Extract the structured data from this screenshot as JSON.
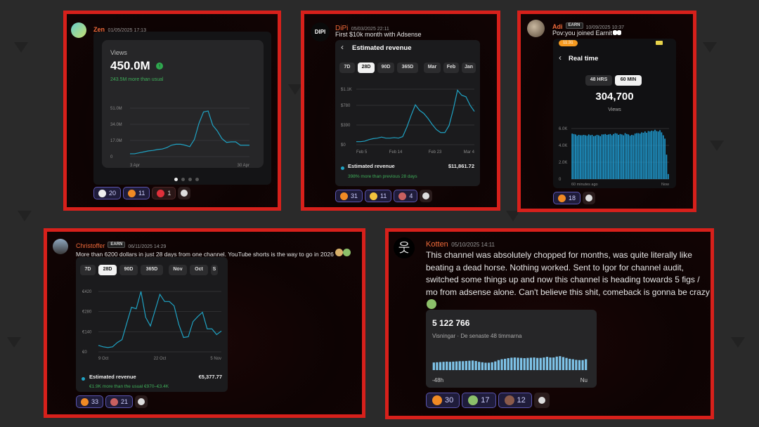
{
  "colors": {
    "frame": "#d7201b",
    "line": "#1fa3c4",
    "bar": "#1f9bd1",
    "kotten_bar": "#7ec3e8",
    "green": "#3fae5a",
    "name": "#f06a3a"
  },
  "zen": {
    "author": "Zen",
    "timestamp": "01/05/2025 17:13",
    "metric": "Views",
    "total": "450.0M",
    "trend_icon": "arrow-up-circle-icon",
    "delta": "243.5M more than usual",
    "reactions": [
      {
        "icon": "llama-icon",
        "count": "20"
      },
      {
        "icon": "fire-icon",
        "count": "11"
      },
      {
        "icon": "hundred-icon",
        "count": "1"
      }
    ],
    "carousel": {
      "pages": 4,
      "active": 1
    }
  },
  "dipi": {
    "author": "DiPi",
    "avatar_text": "DIPI",
    "timestamp": "05/03/2025 22:11",
    "message": "First $10k month with Adsense",
    "title": "Estimated revenue",
    "tabs": [
      "7D",
      "28D",
      "90D",
      "365D",
      "Mar",
      "Feb",
      "Jan"
    ],
    "selected_tab": "28D",
    "legend": "Estimated revenue",
    "total": "$11,861.72",
    "delta": "398% more than previous 28 days",
    "reactions": [
      {
        "icon": "fire-icon",
        "count": "31"
      },
      {
        "icon": "relieved-face-icon",
        "count": "11"
      },
      {
        "icon": "rocket-icon",
        "count": "4"
      }
    ]
  },
  "adi": {
    "author": "Adi",
    "badge": "EARN",
    "timestamp": "10/09/2025 10:37",
    "message": "Pov:you joined Earnit",
    "message_icon": "eyes-icon",
    "clock": "11:31",
    "title": "Real time",
    "toggles": [
      "48 HRS",
      "60 MIN"
    ],
    "selected_toggle": "60 MIN",
    "total": "304,700",
    "total_label": "Views",
    "reactions": [
      {
        "icon": "fire-icon",
        "count": "18"
      }
    ]
  },
  "christoffer": {
    "author": "Christoffer",
    "badge": "EARN",
    "timestamp": "06/11/2025 14:29",
    "message": "More than 6200 dollars in just 28 days from one channel. YouTube shorts is the way to go in 2026",
    "message_icons": [
      "money-bag-icon",
      "money-wings-icon"
    ],
    "tabs": [
      "7D",
      "28D",
      "90D",
      "365D",
      "Nov",
      "Oct",
      "S"
    ],
    "selected_tab": "28D",
    "legend": "Estimated revenue",
    "total": "€5,377.77",
    "delta": "€1.9K more than the usual €970–€3.4K",
    "reactions": [
      {
        "icon": "fire-icon",
        "count": "33"
      },
      {
        "icon": "rocket-icon",
        "count": "21"
      }
    ]
  },
  "kotten": {
    "author": "Kotten",
    "timestamp": "05/10/2025 14:11",
    "message_lines": [
      "This channel was absolutely chopped for months, was quite literally like",
      "beating a dead horse. Nothing worked. Sent to Igor for channel audit,",
      "switched some things up and now this channel is heading towards 5 figs /",
      "mo from adsense alone. Can't believe this shit, comeback is gonna be crazy"
    ],
    "message_icon": "money-wings-icon",
    "total": "5 122 766",
    "subtitle": "Visningar · De senaste 48 timmarna",
    "reactions": [
      {
        "icon": "fire-icon",
        "count": "30"
      },
      {
        "icon": "money-wings-icon",
        "count": "17"
      },
      {
        "icon": "face-avatar-icon",
        "count": "12"
      }
    ]
  },
  "chart_data": [
    {
      "type": "line",
      "ylabel": "",
      "yticks": [
        "51.0M",
        "34.0M",
        "17.0M",
        "0"
      ],
      "ytick_values": [
        51,
        34,
        17,
        0
      ],
      "ylim": [
        0,
        51
      ],
      "xticks": [
        "3 Apr",
        "30 Apr"
      ],
      "unit": "M",
      "grid": true,
      "values": [
        3,
        3,
        4,
        5,
        6,
        6.5,
        7.5,
        8,
        9.5,
        12,
        13,
        13,
        12,
        10.5,
        18,
        35,
        47,
        48,
        33,
        27,
        19,
        15,
        15.5,
        15.5,
        12,
        12,
        12
      ]
    },
    {
      "type": "line",
      "yticks": [
        "$1.1K",
        "$780",
        "$390",
        "$0"
      ],
      "ytick_values": [
        1100,
        780,
        390,
        0
      ],
      "ylim": [
        0,
        1100
      ],
      "xticks": [
        "Feb 5",
        "Feb 14",
        "Feb 23",
        "Mar 4"
      ],
      "grid": true,
      "values": [
        60,
        60,
        70,
        100,
        120,
        130,
        150,
        130,
        130,
        140,
        130,
        160,
        350,
        580,
        790,
        680,
        620,
        520,
        400,
        300,
        240,
        240,
        380,
        700,
        1080,
        980,
        950,
        780,
        660
      ]
    },
    {
      "type": "bar",
      "yticks": [
        "6.0K",
        "4.0K",
        "2.0K",
        "0"
      ],
      "ytick_values": [
        6000,
        4000,
        2000,
        0
      ],
      "ylim": [
        0,
        6000
      ],
      "xticks": [
        "60 minutes ago",
        "Now"
      ],
      "grid": true,
      "values": [
        5400,
        5350,
        5300,
        5150,
        5250,
        5200,
        5200,
        5250,
        5200,
        5150,
        5300,
        5200,
        5250,
        5100,
        5150,
        5250,
        5200,
        5100,
        5300,
        5300,
        5350,
        5250,
        5300,
        5350,
        5200,
        5350,
        5450,
        5400,
        5250,
        5350,
        5300,
        5200,
        5450,
        5350,
        5300,
        5150,
        5250,
        5200,
        5400,
        5450,
        5450,
        5400,
        5550,
        5500,
        5650,
        5500,
        5700,
        5650,
        5750,
        5700,
        5850,
        5700,
        5650,
        5800,
        5550,
        5200,
        4800,
        2900,
        600
      ]
    },
    {
      "type": "line",
      "yticks": [
        "€420",
        "€280",
        "€140",
        "€0"
      ],
      "ytick_values": [
        420,
        280,
        140,
        0
      ],
      "ylim": [
        0,
        420
      ],
      "xticks": [
        "9 Oct",
        "22 Oct",
        "5 Nov"
      ],
      "grid": true,
      "values": [
        45,
        35,
        30,
        35,
        65,
        85,
        200,
        310,
        300,
        420,
        240,
        180,
        290,
        400,
        350,
        350,
        320,
        190,
        100,
        105,
        210,
        245,
        275,
        160,
        160,
        120,
        145
      ]
    },
    {
      "type": "bar",
      "xticks": [
        "-48h",
        "Nu"
      ],
      "ylim": [
        0,
        100
      ],
      "values": [
        35,
        36,
        37,
        38,
        39,
        38,
        39,
        40,
        41,
        41,
        42,
        43,
        44,
        42,
        38,
        36,
        34,
        34,
        36,
        40,
        46,
        50,
        52,
        55,
        57,
        58,
        57,
        56,
        55,
        56,
        57,
        58,
        56,
        56,
        58,
        61,
        58,
        58,
        62,
        64,
        60,
        56,
        52,
        50,
        47,
        46,
        46,
        50
      ]
    }
  ]
}
